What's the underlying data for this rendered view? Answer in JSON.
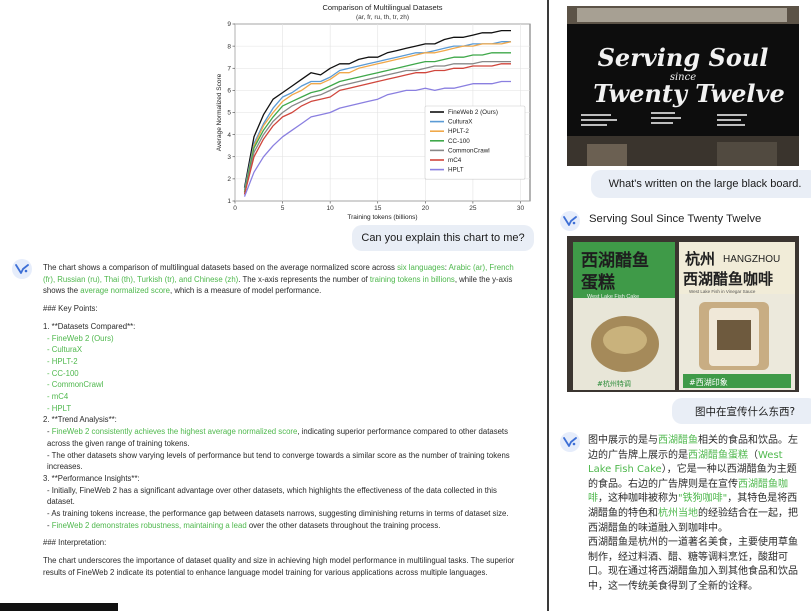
{
  "chart_data": {
    "type": "line",
    "title": "Comparison of Multilingual Datasets",
    "subtitle": "(ar, fr, ru, th, tr, zh)",
    "xlabel": "Training tokens (billions)",
    "ylabel": "Average Normalized Score",
    "xlim": [
      0,
      31
    ],
    "ylim": [
      1,
      9
    ],
    "xticks": [
      0,
      5,
      10,
      15,
      20,
      25,
      30
    ],
    "yticks": [
      1,
      2,
      3,
      4,
      5,
      6,
      7,
      8,
      9
    ],
    "grid": true,
    "legend_position": "bottom-right",
    "x": [
      1,
      2,
      3,
      4,
      5,
      6,
      7,
      8,
      9,
      10,
      11,
      12,
      13,
      14,
      15,
      16,
      17,
      18,
      19,
      20,
      21,
      22,
      23,
      24,
      25,
      26,
      27,
      28,
      29
    ],
    "series": [
      {
        "name": "FineWeb 2 (Ours)",
        "color": "#111111",
        "values": [
          1.6,
          3.9,
          4.9,
          5.6,
          5.9,
          6.2,
          6.5,
          6.8,
          6.7,
          7.0,
          7.2,
          7.2,
          7.4,
          7.5,
          7.5,
          7.7,
          7.8,
          7.9,
          8.0,
          8.1,
          8.1,
          8.3,
          8.4,
          8.4,
          8.5,
          8.6,
          8.6,
          8.7,
          8.7
        ]
      },
      {
        "name": "CulturaX",
        "color": "#5b9bd5",
        "values": [
          1.5,
          3.6,
          4.5,
          5.2,
          5.7,
          5.9,
          6.2,
          6.4,
          6.4,
          6.6,
          6.9,
          7.0,
          7.1,
          7.2,
          7.3,
          7.4,
          7.5,
          7.6,
          7.7,
          7.7,
          7.8,
          7.9,
          8.0,
          8.0,
          8.1,
          8.1,
          8.1,
          8.2,
          8.2
        ]
      },
      {
        "name": "HPLT-2",
        "color": "#f0a84a",
        "values": [
          1.4,
          3.5,
          4.4,
          5.0,
          5.5,
          5.8,
          6.0,
          6.3,
          6.3,
          6.5,
          6.8,
          6.8,
          7.0,
          7.1,
          7.2,
          7.3,
          7.4,
          7.5,
          7.6,
          7.7,
          7.7,
          7.8,
          7.9,
          8.0,
          8.0,
          8.1,
          8.1,
          8.1,
          8.2
        ]
      },
      {
        "name": "CC-100",
        "color": "#3fa84a",
        "values": [
          1.4,
          3.4,
          4.2,
          4.8,
          5.3,
          5.5,
          5.7,
          5.9,
          6.0,
          6.2,
          6.4,
          6.5,
          6.6,
          6.7,
          6.8,
          6.9,
          7.0,
          7.1,
          7.2,
          7.3,
          7.3,
          7.4,
          7.5,
          7.5,
          7.6,
          7.6,
          7.7,
          7.7,
          7.7
        ]
      },
      {
        "name": "CommonCrawl",
        "color": "#888888",
        "values": [
          1.3,
          3.2,
          4.0,
          4.6,
          5.0,
          5.3,
          5.5,
          5.7,
          5.8,
          6.0,
          6.2,
          6.3,
          6.4,
          6.5,
          6.6,
          6.7,
          6.8,
          6.9,
          6.9,
          7.0,
          7.1,
          7.1,
          7.2,
          7.2,
          7.2,
          7.3,
          7.3,
          7.3,
          7.3
        ]
      },
      {
        "name": "mC4",
        "color": "#d0463c",
        "values": [
          1.3,
          3.0,
          3.8,
          4.4,
          4.8,
          5.0,
          5.3,
          5.5,
          5.6,
          5.7,
          6.0,
          6.1,
          6.2,
          6.3,
          6.4,
          6.5,
          6.6,
          6.7,
          6.8,
          6.8,
          6.9,
          6.9,
          7.0,
          7.0,
          7.1,
          7.1,
          7.1,
          7.2,
          7.2
        ]
      },
      {
        "name": "HPLT",
        "color": "#8a7fe0",
        "values": [
          1.2,
          2.3,
          3.0,
          3.5,
          3.9,
          4.2,
          4.5,
          4.8,
          4.9,
          5.0,
          5.2,
          5.3,
          5.4,
          5.5,
          5.6,
          5.8,
          5.9,
          6.0,
          6.0,
          6.1,
          6.0,
          6.1,
          6.1,
          6.2,
          6.3,
          6.3,
          6.3,
          6.4,
          6.4
        ]
      }
    ]
  },
  "chat_left": {
    "user_question": "Can you explain this chart to me?",
    "answer": {
      "intro_a": "The chart shows a comparison of multilingual datasets based on the average normalized score across ",
      "intro_b": "six languages",
      "intro_c": ": ",
      "intro_d": "Arabic (ar), French (fr), Russian (ru), Thai (th), Turkish (tr), and Chinese (zh)",
      "intro_e": ". The x-axis represents the number of ",
      "intro_f": "training tokens in billions",
      "intro_g": ", while the y-axis shows the ",
      "intro_h": "average normalized score",
      "intro_i": ", which is a measure of model performance.",
      "key_points": "### Key Points:",
      "p1": "1. **Datasets Compared**:",
      "datasets": [
        "- FineWeb 2 (Ours)",
        "- CulturaX",
        "- HPLT-2",
        "- CC-100",
        "- CommonCrawl",
        "- mC4",
        "- HPLT"
      ],
      "p2": "2. **Trend Analysis**:",
      "t1a": "- ",
      "t1b": "FineWeb 2 consistently achieves the highest average normalized score",
      "t1c": ", indicating superior performance compared to other datasets across the given range of training tokens.",
      "t2": "- The other datasets show varying levels of performance but tend to converge towards a similar score as the number of training tokens increases.",
      "p3": "3. **Performance Insights**:",
      "i1": "- Initially, FineWeb 2 has a significant advantage over other datasets, which highlights the effectiveness of the data collected in this dataset.",
      "i2": "- As training tokens increase, the performance gap between datasets narrows, suggesting diminishing returns in terms of dataset size.",
      "i3a": "- ",
      "i3b": "FineWeb 2 demonstrates robustness, maintaining a lead",
      "i3c": " over the other datasets throughout the training process.",
      "interp": "### Interpretation:",
      "conclusion": "The chart underscores the importance of dataset quality and size in achieving high model performance in multilingual tasks. The superior results of FineWeb 2 indicate its potential to enhance language model training for various applications across multiple languages."
    }
  },
  "chat_right": {
    "sign_line1": "Serving Soul",
    "sign_line2": "since",
    "sign_line3": "Twenty Twelve",
    "question1": "What's written on the large black board.",
    "answer1": "Serving Soul Since Twenty Twelve",
    "poster": {
      "left_title1": "西湖醋鱼",
      "left_title2": "蛋糕",
      "left_en": "West Lake Fish Cake",
      "left_tag": "#杭州特调",
      "right_top1": "杭州",
      "right_top2": "HANGZHOU",
      "right_title": "西湖醋鱼咖啡",
      "right_en": "West Lake Fish in Vinegar Sauce",
      "right_tag": "#西湖印象"
    },
    "question2": "图中在宣传什么东西?",
    "answer2": {
      "a1": "图中展示的是与",
      "a2": "西湖醋鱼",
      "a3": "相关的食品和饮品。左边的广告牌上展示的是",
      "a4": "西湖醋鱼蛋糕",
      "a5": "（",
      "a6": "West Lake Fish Cake",
      "a7": "），它是一种以西湖醋鱼为主题的食品。右边的广告牌则是在宣传",
      "a8": "西湖醋鱼咖啡",
      "a9": "，这种咖啡被称为",
      "a10": "\"铁狗咖啡\"",
      "a11": "，其特色是将西湖醋鱼的特色和",
      "a12": "杭州当地",
      "a13": "的经验结合在一起，把西湖醋鱼的味道融入到咖啡中。",
      "b1": "西湖醋鱼是杭州的一道著名美食，主要使用草鱼制作，经过料酒、醋、糖等调料烹饪，酸甜可口。现在通过将西湖醋鱼加入到其他食品和饮品中，这一传统美食得到了全新的诠释。"
    }
  }
}
